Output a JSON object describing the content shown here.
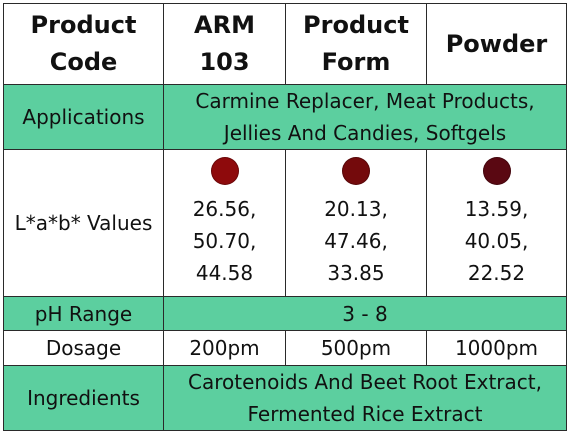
{
  "header": {
    "c1": [
      "Product",
      "Code"
    ],
    "c2": [
      "ARM",
      "103"
    ],
    "c3": [
      "Product",
      "Form"
    ],
    "c4": "Powder"
  },
  "applications": {
    "label": "Applications",
    "value": [
      "Carmine Replacer, Meat Products,",
      "Jellies And Candies, Softgels"
    ]
  },
  "lab_values": {
    "label": "L*a*b* Values",
    "entries": [
      {
        "color": "#8e0a0c",
        "lines": [
          "26.56,",
          "50.70,",
          "44.58"
        ]
      },
      {
        "color": "#740a0c",
        "lines": [
          "20.13,",
          "47.46,",
          "33.85"
        ]
      },
      {
        "color": "#5a0812",
        "lines": [
          "13.59,",
          "40.05,",
          "22.52"
        ]
      }
    ]
  },
  "ph_range": {
    "label": "pH Range",
    "value": "3 - 8"
  },
  "dosage": {
    "label": "Dosage",
    "values": [
      "200pm",
      "500pm",
      "1000pm"
    ]
  },
  "ingredients": {
    "label": "Ingredients",
    "value": [
      "Carotenoids And Beet Root Extract,",
      "Fermented Rice Extract"
    ]
  },
  "colors": {
    "accent_green": "#5ccf9f",
    "border": "#2a2a2a"
  }
}
